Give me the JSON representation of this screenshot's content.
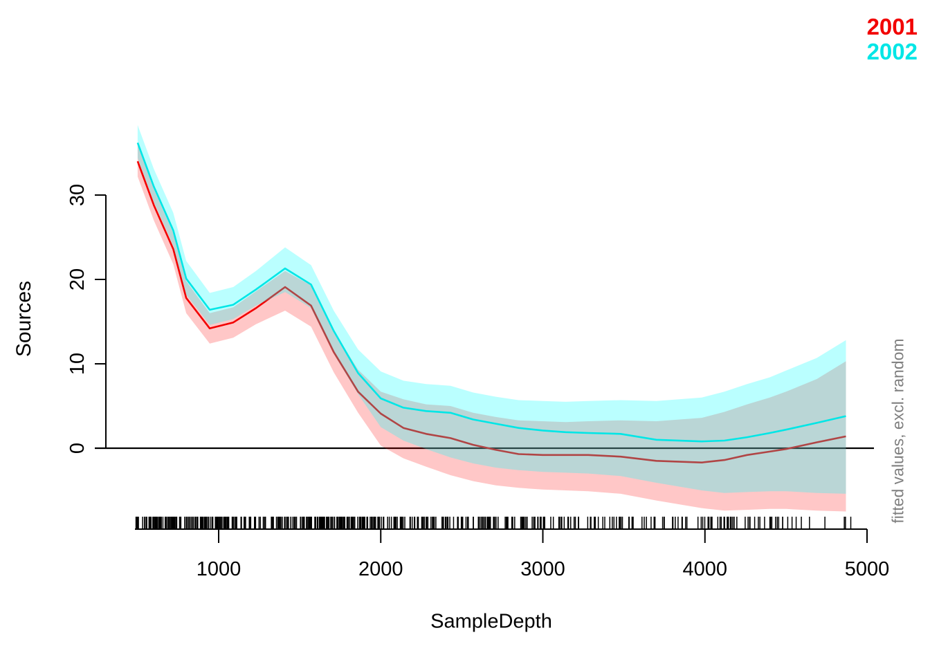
{
  "chart_data": {
    "type": "line",
    "title": "",
    "xlabel": "SampleDepth",
    "ylabel": "Sources",
    "right_note": "fitted values, excl. random",
    "legend_position": "top-right",
    "grid": false,
    "zero_line": 0,
    "x_ticks": [
      1000,
      2000,
      3000,
      4000,
      5000
    ],
    "y_ticks": [
      0,
      10,
      20,
      30
    ],
    "xlim": [
      300,
      5040
    ],
    "ylim": [
      -10,
      38.5
    ],
    "x": [
      500,
      600,
      720,
      800,
      945,
      1090,
      1230,
      1410,
      1570,
      1710,
      1860,
      2000,
      2140,
      2280,
      2430,
      2570,
      2710,
      2850,
      3000,
      3140,
      3280,
      3480,
      3700,
      3980,
      4120,
      4260,
      4400,
      4500,
      4690,
      4870
    ],
    "series": [
      {
        "name": "2001",
        "color": "#F20000",
        "band_color": "rgba(255,0,0,0.22)",
        "values": [
          34.0,
          28.8,
          23.6,
          17.8,
          14.2,
          14.9,
          16.6,
          19.1,
          16.9,
          11.4,
          6.7,
          4.1,
          2.4,
          1.7,
          1.2,
          0.4,
          -0.2,
          -0.7,
          -0.8,
          -0.8,
          -0.8,
          -1.0,
          -1.5,
          -1.7,
          -1.4,
          -0.8,
          -0.4,
          -0.1,
          0.7,
          1.4
        ],
        "lower": [
          32.2,
          27.0,
          21.8,
          16.0,
          12.4,
          13.1,
          14.7,
          16.3,
          14.4,
          9.0,
          4.2,
          0.3,
          -1.2,
          -2.2,
          -3.2,
          -3.9,
          -4.4,
          -4.7,
          -4.9,
          -5.0,
          -5.1,
          -5.4,
          -6.2,
          -7.1,
          -7.4,
          -7.3,
          -7.2,
          -7.2,
          -7.4,
          -7.5
        ],
        "upper": [
          35.9,
          30.7,
          25.5,
          19.8,
          16.0,
          16.7,
          18.6,
          21.0,
          19.3,
          13.9,
          9.3,
          6.7,
          5.8,
          5.2,
          5.0,
          4.2,
          3.7,
          3.3,
          3.2,
          3.1,
          3.2,
          3.3,
          3.2,
          3.6,
          4.3,
          5.2,
          6.0,
          6.7,
          8.2,
          10.3
        ]
      },
      {
        "name": "2002",
        "color": "#00E6E6",
        "band_color": "rgba(0,255,255,0.27)",
        "values": [
          36.2,
          31.0,
          25.8,
          20.1,
          16.4,
          17.0,
          18.8,
          21.3,
          19.4,
          13.9,
          8.9,
          5.9,
          4.8,
          4.4,
          4.2,
          3.4,
          2.9,
          2.4,
          2.1,
          1.9,
          1.8,
          1.7,
          1.0,
          0.8,
          0.9,
          1.3,
          1.8,
          2.2,
          3.0,
          3.8
        ],
        "lower": [
          34.4,
          29.2,
          24.0,
          18.2,
          14.6,
          15.3,
          16.9,
          18.5,
          16.6,
          11.2,
          6.4,
          2.5,
          0.9,
          -0.1,
          -1.1,
          -1.8,
          -2.3,
          -2.6,
          -2.8,
          -2.9,
          -3.0,
          -3.3,
          -4.1,
          -5.0,
          -5.3,
          -5.2,
          -5.1,
          -5.1,
          -5.3,
          -5.4
        ],
        "upper": [
          38.3,
          33.1,
          27.9,
          22.2,
          18.4,
          19.1,
          21.0,
          23.8,
          21.7,
          16.3,
          11.7,
          9.1,
          8.0,
          7.6,
          7.4,
          6.6,
          6.1,
          5.7,
          5.6,
          5.5,
          5.6,
          5.7,
          5.6,
          6.0,
          6.7,
          7.6,
          8.4,
          9.2,
          10.7,
          12.8
        ]
      }
    ],
    "rug": {
      "axis": "x",
      "seed": 7,
      "segments": [
        {
          "from": 490,
          "to": 2070,
          "count": 300
        },
        {
          "from": 2070,
          "to": 3300,
          "count": 130
        },
        {
          "from": 3300,
          "to": 4200,
          "count": 60
        },
        {
          "from": 4200,
          "to": 4900,
          "count": 25
        }
      ]
    }
  }
}
